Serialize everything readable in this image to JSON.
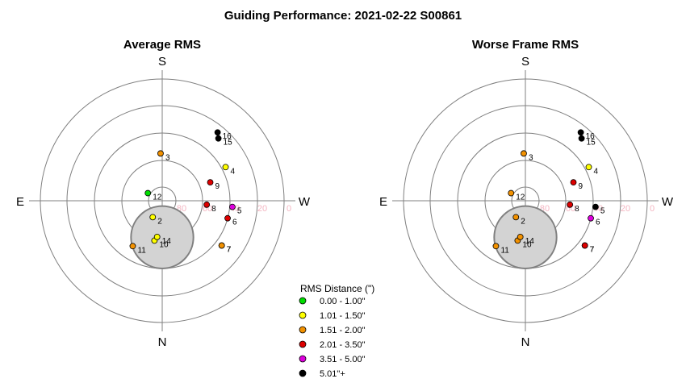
{
  "title": "Guiding Performance: 2021-02-22 S00861",
  "compass": {
    "top": "S",
    "bottom": "N",
    "left": "E",
    "right": "W"
  },
  "ring_labels": [
    "80",
    "60",
    "40",
    "20",
    "0"
  ],
  "legend": {
    "title": "RMS Distance (\")",
    "items": [
      {
        "label": "0.00 - 1.00\"",
        "color": "#00dd00"
      },
      {
        "label": "1.01 - 1.50\"",
        "color": "#ffff00"
      },
      {
        "label": "1.51 - 2.00\"",
        "color": "#f29100"
      },
      {
        "label": "2.01 - 3.50\"",
        "color": "#dd0000"
      },
      {
        "label": "3.51 - 5.00\"",
        "color": "#dd00dd"
      },
      {
        "label": "5.01\"+",
        "color": "#000000"
      }
    ]
  },
  "colors": {
    "grid": "#808080",
    "ring_label": "#f4b6c2",
    "moon_fill": "#d3d3d3",
    "moon_stroke": "#808080"
  },
  "chart_data": [
    {
      "type": "scatter",
      "title": "Average RMS",
      "axis": "polar: azimuth (S top, W right) vs altitude (90 center, 0 edge)",
      "points": [
        {
          "label": "2",
          "az": 150,
          "alt": 76,
          "bin": 1
        },
        {
          "label": "3",
          "az": 2,
          "alt": 55,
          "bin": 2
        },
        {
          "label": "4",
          "az": 298,
          "alt": 37,
          "bin": 1
        },
        {
          "label": "5",
          "az": 265,
          "alt": 38,
          "bin": 4
        },
        {
          "label": "6",
          "az": 255,
          "alt": 40,
          "bin": 3
        },
        {
          "label": "7",
          "az": 233,
          "alt": 35,
          "bin": 2
        },
        {
          "label": "7",
          "az": 233,
          "alt": 35,
          "bin": 2
        },
        {
          "label": "8",
          "az": 265,
          "alt": 57,
          "bin": 3
        },
        {
          "label": "9",
          "az": 291,
          "alt": 52,
          "bin": 3
        },
        {
          "label": "10",
          "az": 169,
          "alt": 60,
          "bin": 1
        },
        {
          "label": "11",
          "az": 147,
          "alt": 50,
          "bin": 2
        },
        {
          "label": "12",
          "az": 62,
          "alt": 78,
          "bin": 0
        },
        {
          "label": "14",
          "az": 172,
          "alt": 63,
          "bin": 1
        },
        {
          "label": "15",
          "az": 318,
          "alt": 28,
          "bin": 5
        },
        {
          "label": "16",
          "az": 321,
          "alt": 25,
          "bin": 5
        }
      ],
      "moon": {
        "az": 0,
        "alt": 63,
        "radius_deg": 12
      }
    },
    {
      "type": "scatter",
      "title": "Worse Frame RMS",
      "axis": "polar: azimuth (S top, W right) vs altitude (90 center, 0 edge)",
      "points": [
        {
          "label": "2",
          "az": 150,
          "alt": 76,
          "bin": 2
        },
        {
          "label": "3",
          "az": 2,
          "alt": 55,
          "bin": 2
        },
        {
          "label": "4",
          "az": 298,
          "alt": 37,
          "bin": 1
        },
        {
          "label": "5",
          "az": 265,
          "alt": 38,
          "bin": 5
        },
        {
          "label": "6",
          "az": 255,
          "alt": 40,
          "bin": 4
        },
        {
          "label": "7",
          "az": 233,
          "alt": 35,
          "bin": 3
        },
        {
          "label": "7",
          "az": 233,
          "alt": 35,
          "bin": 3
        },
        {
          "label": "8",
          "az": 265,
          "alt": 57,
          "bin": 3
        },
        {
          "label": "9",
          "az": 291,
          "alt": 52,
          "bin": 3
        },
        {
          "label": "10",
          "az": 169,
          "alt": 60,
          "bin": 2
        },
        {
          "label": "11",
          "az": 147,
          "alt": 50,
          "bin": 2
        },
        {
          "label": "12",
          "az": 62,
          "alt": 78,
          "bin": 2
        },
        {
          "label": "14",
          "az": 172,
          "alt": 63,
          "bin": 2
        },
        {
          "label": "15",
          "az": 318,
          "alt": 28,
          "bin": 5
        },
        {
          "label": "16",
          "az": 321,
          "alt": 25,
          "bin": 5
        }
      ],
      "moon": {
        "az": 0,
        "alt": 63,
        "radius_deg": 12
      }
    }
  ]
}
